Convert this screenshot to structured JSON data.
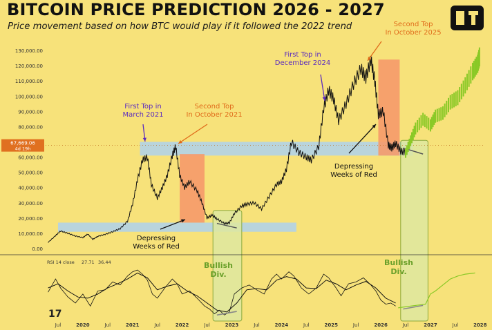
{
  "header": {
    "title": "BITCOIN PRICE PREDICTION 2026 - 2027",
    "subtitle": "Price movement based on how BTC would play if it followed the 2022 trend"
  },
  "colors": {
    "background": "#f7e27a",
    "price_line": "#111111",
    "prediction": "#8ac926",
    "support_band": "#b9d4dc",
    "red_zone": "#f59a6a",
    "bullish_zone": "#dfe9a0",
    "first_top_label": "#5b2bbf",
    "second_top_label": "#e06b1a",
    "current_price_badge": "#e07020"
  },
  "chart_data": [
    {
      "type": "line",
      "name": "price",
      "xlabel": "",
      "ylabel": "",
      "x_ticks": [
        "Jul",
        "2020",
        "Jul",
        "2021",
        "Jul",
        "2022",
        "Jul",
        "2023",
        "Jul",
        "2024",
        "Jul",
        "2025",
        "Jul",
        "2026",
        "Jul",
        "2027",
        "Jul",
        "2028"
      ],
      "y_ticks": [
        "0.00",
        "10,000.00",
        "20,000.00",
        "30,000.00",
        "40,000.00",
        "50,000.00",
        "60,000.00",
        "70,000.00",
        "80,000.00",
        "90,000.00",
        "100,000.00",
        "110,000.00",
        "120,000.00",
        "130,000.00"
      ],
      "ylim": [
        0,
        135000
      ],
      "xlim": [
        2019.25,
        2028.1
      ],
      "current_price": {
        "value": "67,669.06",
        "countdown": "4d 19h"
      },
      "series": [
        {
          "points": [
            [
              2019.3,
              4000
            ],
            [
              2019.45,
              8500
            ],
            [
              2019.55,
              11500
            ],
            [
              2019.7,
              10000
            ],
            [
              2019.85,
              8200
            ],
            [
              2020.0,
              7200
            ],
            [
              2020.1,
              9500
            ],
            [
              2020.2,
              6000
            ],
            [
              2020.3,
              8000
            ],
            [
              2020.45,
              9300
            ],
            [
              2020.6,
              11000
            ],
            [
              2020.75,
              13000
            ],
            [
              2020.9,
              18000
            ],
            [
              2021.0,
              29000
            ],
            [
              2021.1,
              45000
            ],
            [
              2021.2,
              58000
            ],
            [
              2021.3,
              60000
            ],
            [
              2021.38,
              42000
            ],
            [
              2021.5,
              33000
            ],
            [
              2021.6,
              40000
            ],
            [
              2021.7,
              48000
            ],
            [
              2021.8,
              61000
            ],
            [
              2021.87,
              67000
            ],
            [
              2021.95,
              48000
            ],
            [
              2022.05,
              40000
            ],
            [
              2022.15,
              44000
            ],
            [
              2022.3,
              38000
            ],
            [
              2022.4,
              30000
            ],
            [
              2022.5,
              20000
            ],
            [
              2022.6,
              22000
            ],
            [
              2022.7,
              19500
            ],
            [
              2022.85,
              16500
            ],
            [
              2022.95,
              16800
            ],
            [
              2023.05,
              23000
            ],
            [
              2023.2,
              28000
            ],
            [
              2023.3,
              29000
            ],
            [
              2023.45,
              30000
            ],
            [
              2023.6,
              26000
            ],
            [
              2023.75,
              34000
            ],
            [
              2023.9,
              42000
            ],
            [
              2024.0,
              44000
            ],
            [
              2024.1,
              52000
            ],
            [
              2024.2,
              70000
            ],
            [
              2024.35,
              63000
            ],
            [
              2024.5,
              60000
            ],
            [
              2024.6,
              58000
            ],
            [
              2024.75,
              67000
            ],
            [
              2024.85,
              92000
            ],
            [
              2024.95,
              104000
            ],
            [
              2025.05,
              98000
            ],
            [
              2025.15,
              84000
            ],
            [
              2025.3,
              95000
            ],
            [
              2025.45,
              108000
            ],
            [
              2025.6,
              118000
            ],
            [
              2025.7,
              112000
            ],
            [
              2025.8,
              124000
            ],
            [
              2025.88,
              110000
            ],
            [
              2025.95,
              88000
            ],
            [
              2026.05,
              90000
            ],
            [
              2026.15,
              68000
            ],
            [
              2026.22,
              66000
            ],
            [
              2026.3,
              69000
            ],
            [
              2026.4,
              64000
            ],
            [
              2026.5,
              63000
            ]
          ]
        }
      ],
      "prediction": {
        "name": "prediction",
        "points": [
          [
            2026.5,
            62000
          ],
          [
            2026.6,
            70000
          ],
          [
            2026.7,
            78000
          ],
          [
            2026.85,
            84000
          ],
          [
            2027.0,
            80000
          ],
          [
            2027.1,
            86000
          ],
          [
            2027.25,
            88000
          ],
          [
            2027.4,
            95000
          ],
          [
            2027.55,
            98000
          ],
          [
            2027.7,
            106000
          ],
          [
            2027.85,
            115000
          ],
          [
            2027.95,
            120000
          ],
          [
            2028.0,
            126000
          ]
        ]
      },
      "annotations": [
        {
          "id": "first_top_2021",
          "text": "First Top in\nMarch 2021"
        },
        {
          "id": "second_top_2021",
          "text": "Second Top\nIn October 2021"
        },
        {
          "id": "first_top_2024",
          "text": "First Top in\nDecember 2024"
        },
        {
          "id": "second_top_2025",
          "text": "Second Top\nIn October 2025"
        },
        {
          "id": "depressing_2022",
          "text": "Depressing\nWeeks of Red"
        },
        {
          "id": "depressing_2026",
          "text": "Depressing\nWeeks of Red"
        }
      ]
    },
    {
      "type": "line",
      "name": "rsi",
      "header": {
        "label": "RSI 14 close",
        "value1": "27.71",
        "value2": "36.44"
      },
      "ylim": [
        0,
        100
      ],
      "series": [
        {
          "name": "rsi",
          "points": [
            [
              2019.3,
              48
            ],
            [
              2019.45,
              70
            ],
            [
              2019.55,
              55
            ],
            [
              2019.7,
              40
            ],
            [
              2019.85,
              30
            ],
            [
              2020.0,
              45
            ],
            [
              2020.15,
              25
            ],
            [
              2020.3,
              50
            ],
            [
              2020.45,
              52
            ],
            [
              2020.6,
              65
            ],
            [
              2020.75,
              60
            ],
            [
              2020.9,
              75
            ],
            [
              2021.0,
              82
            ],
            [
              2021.1,
              85
            ],
            [
              2021.2,
              78
            ],
            [
              2021.3,
              68
            ],
            [
              2021.4,
              45
            ],
            [
              2021.5,
              38
            ],
            [
              2021.65,
              55
            ],
            [
              2021.8,
              70
            ],
            [
              2021.9,
              62
            ],
            [
              2022.0,
              45
            ],
            [
              2022.15,
              50
            ],
            [
              2022.3,
              38
            ],
            [
              2022.45,
              25
            ],
            [
              2022.55,
              20
            ],
            [
              2022.65,
              12
            ],
            [
              2022.75,
              18
            ],
            [
              2022.85,
              10
            ],
            [
              2022.95,
              15
            ],
            [
              2023.05,
              45
            ],
            [
              2023.2,
              55
            ],
            [
              2023.35,
              60
            ],
            [
              2023.5,
              52
            ],
            [
              2023.65,
              45
            ],
            [
              2023.8,
              70
            ],
            [
              2023.9,
              78
            ],
            [
              2024.0,
              70
            ],
            [
              2024.15,
              82
            ],
            [
              2024.25,
              75
            ],
            [
              2024.4,
              55
            ],
            [
              2024.55,
              45
            ],
            [
              2024.7,
              55
            ],
            [
              2024.85,
              78
            ],
            [
              2024.95,
              72
            ],
            [
              2025.1,
              55
            ],
            [
              2025.2,
              42
            ],
            [
              2025.35,
              62
            ],
            [
              2025.5,
              65
            ],
            [
              2025.65,
              72
            ],
            [
              2025.8,
              60
            ],
            [
              2025.9,
              50
            ],
            [
              2026.0,
              35
            ],
            [
              2026.1,
              28
            ],
            [
              2026.2,
              30
            ],
            [
              2026.3,
              25
            ]
          ]
        },
        {
          "name": "rsi-ma",
          "points": [
            [
              2019.3,
              55
            ],
            [
              2019.5,
              62
            ],
            [
              2019.7,
              50
            ],
            [
              2019.9,
              40
            ],
            [
              2020.1,
              38
            ],
            [
              2020.3,
              45
            ],
            [
              2020.5,
              55
            ],
            [
              2020.7,
              62
            ],
            [
              2020.9,
              70
            ],
            [
              2021.1,
              80
            ],
            [
              2021.3,
              72
            ],
            [
              2021.5,
              52
            ],
            [
              2021.7,
              58
            ],
            [
              2021.9,
              62
            ],
            [
              2022.1,
              50
            ],
            [
              2022.3,
              42
            ],
            [
              2022.5,
              30
            ],
            [
              2022.7,
              18
            ],
            [
              2022.9,
              15
            ],
            [
              2023.1,
              30
            ],
            [
              2023.3,
              52
            ],
            [
              2023.5,
              54
            ],
            [
              2023.7,
              52
            ],
            [
              2023.9,
              68
            ],
            [
              2024.1,
              74
            ],
            [
              2024.3,
              70
            ],
            [
              2024.5,
              55
            ],
            [
              2024.7,
              54
            ],
            [
              2024.9,
              68
            ],
            [
              2025.1,
              62
            ],
            [
              2025.3,
              52
            ],
            [
              2025.5,
              60
            ],
            [
              2025.7,
              66
            ],
            [
              2025.9,
              55
            ],
            [
              2026.1,
              38
            ],
            [
              2026.3,
              30
            ]
          ]
        }
      ],
      "prediction": {
        "name": "rsi-prediction",
        "points": [
          [
            2026.35,
            22
          ],
          [
            2026.6,
            25
          ],
          [
            2026.9,
            28
          ],
          [
            2027.0,
            45
          ],
          [
            2027.1,
            50
          ],
          [
            2027.25,
            60
          ],
          [
            2027.4,
            70
          ],
          [
            2027.55,
            75
          ],
          [
            2027.7,
            78
          ],
          [
            2027.9,
            80
          ]
        ]
      },
      "annotations": [
        {
          "id": "bullish_div_2022",
          "text": "Bullish\nDiv."
        },
        {
          "id": "bullish_div_2026",
          "text": "Bullish\nDiv."
        }
      ]
    }
  ]
}
